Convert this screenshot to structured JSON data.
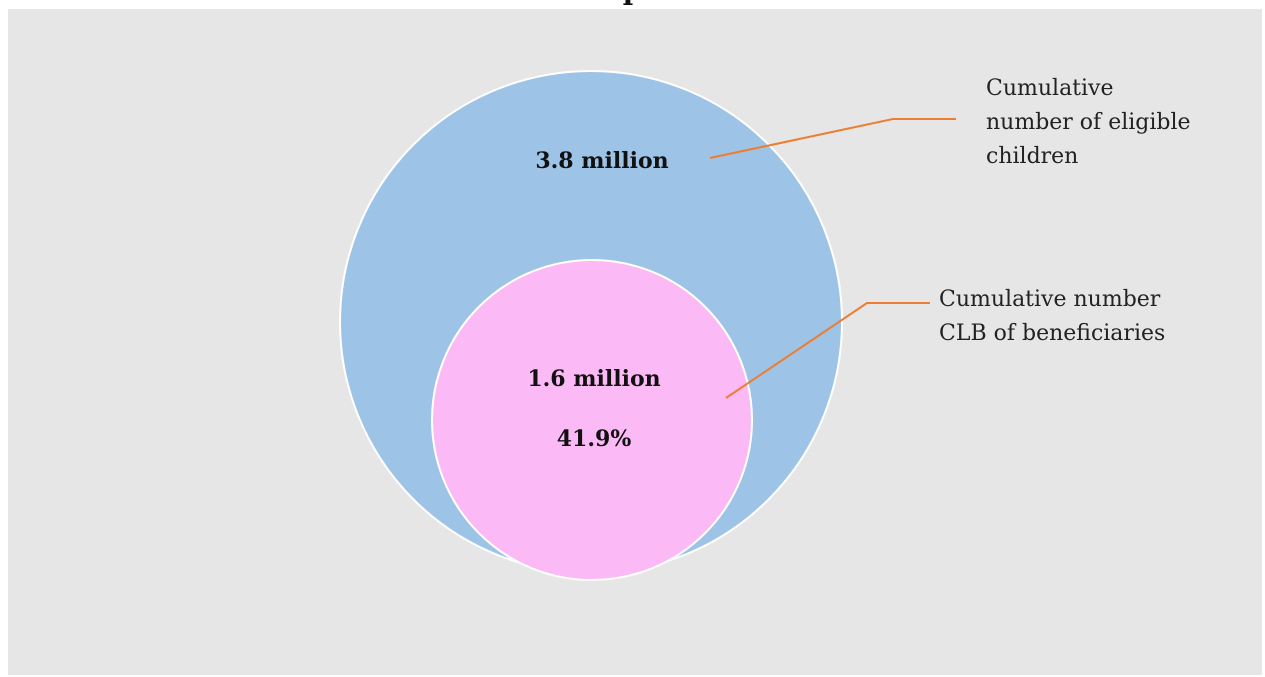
{
  "title": "p",
  "colors": {
    "background": "#e6e6e6",
    "outer_circle": "#9dc3e6",
    "inner_circle": "#fbbaf5",
    "circle_outline": "#ffffff",
    "callout_line": "#ed7d31"
  },
  "eligible": {
    "value": "3.8 million",
    "callout_lines": [
      "Cumulative",
      "number of eligible",
      "children"
    ]
  },
  "beneficiaries": {
    "value": "1.6 million",
    "share": "41.9%",
    "callout_lines": [
      "Cumulative number",
      "CLB of beneficiaries"
    ]
  }
}
